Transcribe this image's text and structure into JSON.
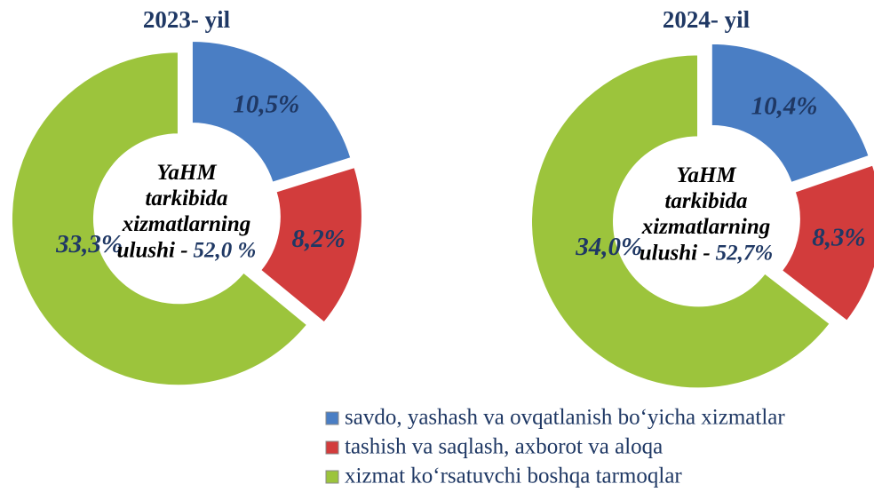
{
  "chart_data": [
    {
      "type": "pie",
      "title": "2023- yil",
      "values": [
        10.5,
        8.2,
        33.3
      ],
      "value_labels": [
        "10,5%",
        "8,2%",
        "33,3%"
      ],
      "center_lines": [
        "YaHM",
        "tarkibida",
        "xizmatlarning",
        "ulushi -"
      ],
      "center_value_label": "52,0 %"
    },
    {
      "type": "pie",
      "title": "2024- yil",
      "values": [
        10.4,
        8.3,
        34.0
      ],
      "value_labels": [
        "10,4%",
        "8,3%",
        "34,0%"
      ],
      "center_lines": [
        "YaHM",
        "tarkibida",
        "xizmatlarning",
        "ulushi -"
      ],
      "center_value_label": "52,7%"
    }
  ],
  "legend": {
    "names": [
      "savdo, yashash va ovqatlanish bo‘yicha xizmatlar",
      "tashish va saqlash, axborot va aloqa",
      "xizmat ko‘rsatuvchi boshqa tarmoqlar"
    ],
    "colors": [
      "#4a7ec4",
      "#d23c3c",
      "#9cc43c"
    ]
  }
}
